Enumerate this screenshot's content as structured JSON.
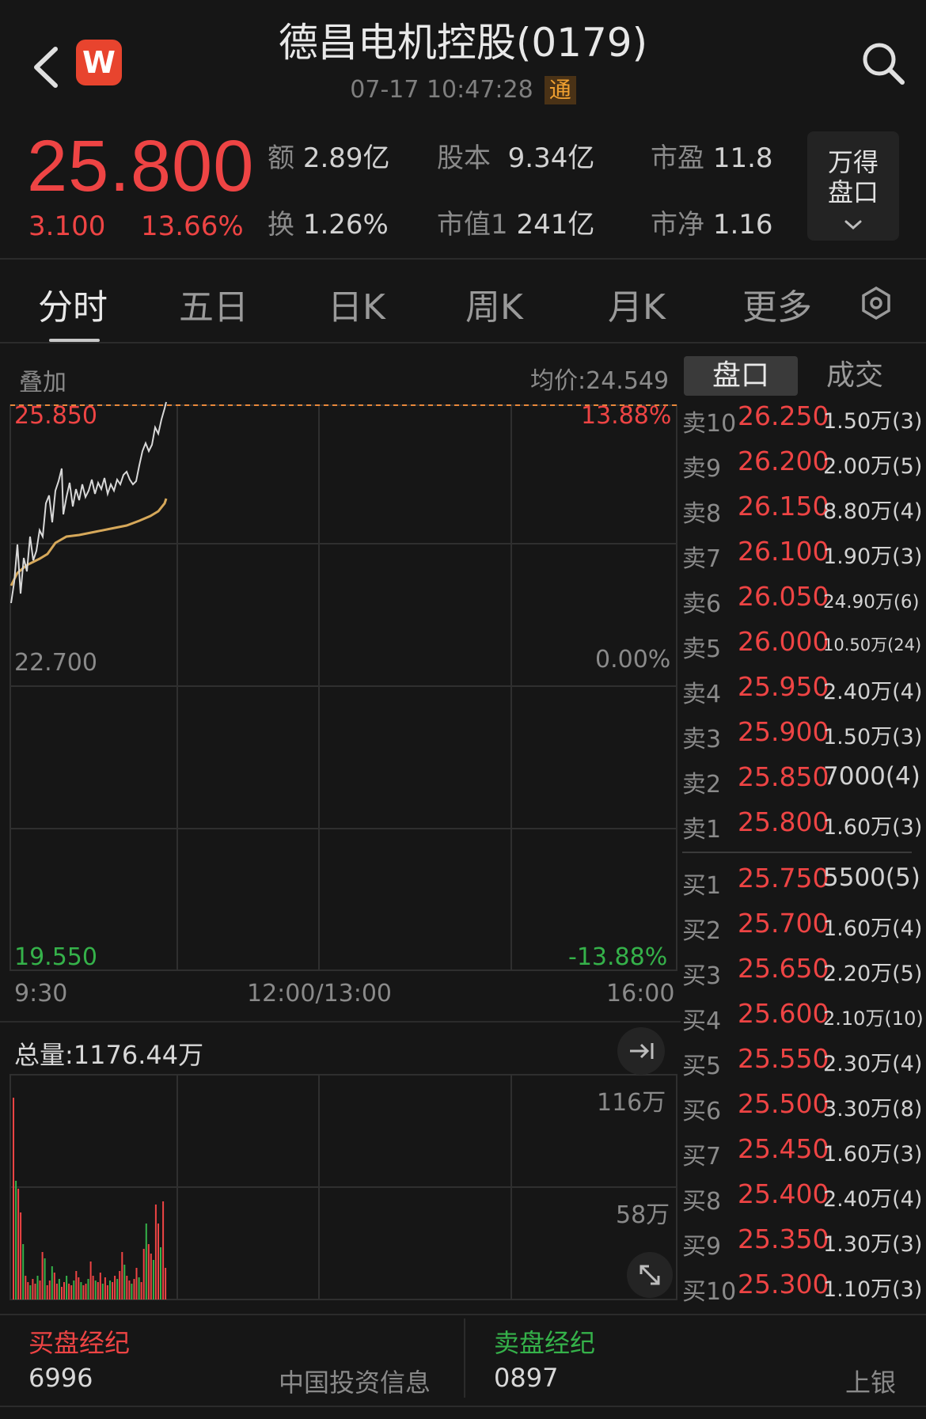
{
  "header": {
    "title": "德昌电机控股(0179)",
    "datetime": "07-17 10:47:28",
    "connect_badge": "通",
    "logo_letter": "W"
  },
  "quote": {
    "price": "25.800",
    "change": "3.100",
    "change_pct": "13.66%",
    "stats": [
      {
        "label": "额",
        "value": "2.89亿"
      },
      {
        "label": "股本",
        "value": "9.34亿"
      },
      {
        "label": "市盈",
        "value": "11.8"
      },
      {
        "label": "换",
        "value": "1.26%"
      },
      {
        "label": "市值1",
        "value": "241亿"
      },
      {
        "label": "市净",
        "value": "1.16"
      }
    ],
    "wind_button": {
      "line1": "万得",
      "line2": "盘口"
    }
  },
  "tabs": [
    "分时",
    "五日",
    "日K",
    "周K",
    "月K",
    "更多"
  ],
  "chart": {
    "overlay_label": "叠加",
    "avg_price": "均价:24.549",
    "price_high": "25.850",
    "pct_high": "13.88%",
    "price_mid": "22.700",
    "pct_mid": "0.00%",
    "price_low": "19.550",
    "pct_low": "-13.88%",
    "time_open": "9:30",
    "time_mid": "12:00/13:00",
    "time_close": "16:00",
    "total_volume": "总量:1176.44万",
    "vol_max": "116万",
    "vol_mid": "58万",
    "colors": {
      "price_line": "#d8d8d8",
      "avg_line": "#d6a85a",
      "up": "#ee4444",
      "down": "#35b24a"
    }
  },
  "orderbook": {
    "tabs": [
      "盘口",
      "成交"
    ],
    "asks": [
      {
        "label": "卖10",
        "price": "26.250",
        "vol": "1.50万(3)"
      },
      {
        "label": "卖9",
        "price": "26.200",
        "vol": "2.00万(5)"
      },
      {
        "label": "卖8",
        "price": "26.150",
        "vol": "8.80万(4)"
      },
      {
        "label": "卖7",
        "price": "26.100",
        "vol": "1.90万(3)"
      },
      {
        "label": "卖6",
        "price": "26.050",
        "vol": "24.90万(6)"
      },
      {
        "label": "卖5",
        "price": "26.000",
        "vol": "10.50万(24)"
      },
      {
        "label": "卖4",
        "price": "25.950",
        "vol": "2.40万(4)"
      },
      {
        "label": "卖3",
        "price": "25.900",
        "vol": "1.50万(3)"
      },
      {
        "label": "卖2",
        "price": "25.850",
        "vol": "7000(4)"
      },
      {
        "label": "卖1",
        "price": "25.800",
        "vol": "1.60万(3)"
      }
    ],
    "bids": [
      {
        "label": "买1",
        "price": "25.750",
        "vol": "5500(5)"
      },
      {
        "label": "买2",
        "price": "25.700",
        "vol": "1.60万(4)"
      },
      {
        "label": "买3",
        "price": "25.650",
        "vol": "2.20万(5)"
      },
      {
        "label": "买4",
        "price": "25.600",
        "vol": "2.10万(10)"
      },
      {
        "label": "买5",
        "price": "25.550",
        "vol": "2.30万(4)"
      },
      {
        "label": "买6",
        "price": "25.500",
        "vol": "3.30万(8)"
      },
      {
        "label": "买7",
        "price": "25.450",
        "vol": "1.60万(3)"
      },
      {
        "label": "买8",
        "price": "25.400",
        "vol": "2.40万(4)"
      },
      {
        "label": "买9",
        "price": "25.350",
        "vol": "1.30万(3)"
      },
      {
        "label": "买10",
        "price": "25.300",
        "vol": "1.10万(3)"
      }
    ]
  },
  "brokers": {
    "buy_title": "买盘经纪",
    "buy_code": "6996",
    "buy_name": "中国投资信息",
    "sell_title": "卖盘经纪",
    "sell_code": "0897",
    "sell_name": "上银"
  }
}
